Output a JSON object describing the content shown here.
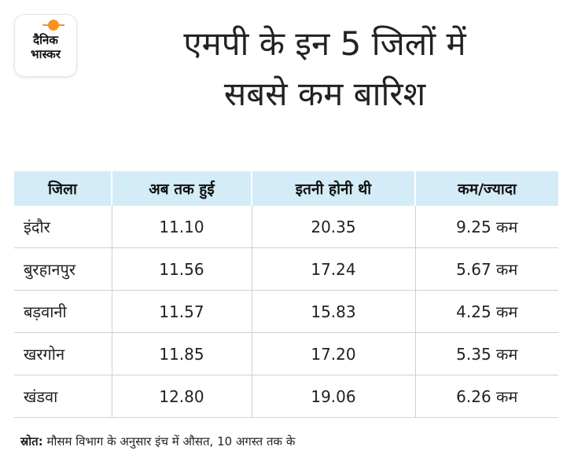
{
  "logo": {
    "line1": "दैनिक",
    "line2": "भास्कर",
    "accent_color": "#f7941d"
  },
  "title": {
    "line1": "एमपी के इन 5 जिलों में",
    "line2": "सबसे कम बारिश"
  },
  "chart_data": {
    "type": "table",
    "header_color": "#d4ecf7",
    "columns": [
      "जिला",
      "अब तक हुई",
      "इतनी होनी थी",
      "कम/ज्यादा"
    ],
    "rows": [
      [
        "इंदौर",
        "11.10",
        "20.35",
        "9.25 कम"
      ],
      [
        "बुरहानपुर",
        "11.56",
        "17.24",
        "5.67 कम"
      ],
      [
        "बड़वानी",
        "11.57",
        "15.83",
        "4.25 कम"
      ],
      [
        "खरगोन",
        "11.85",
        "17.20",
        "5.35 कम"
      ],
      [
        "खंडवा",
        "12.80",
        "19.06",
        "6.26 कम"
      ]
    ]
  },
  "source": {
    "label": "स्रोत:",
    "text": "मौसम विभाग के अनुसार इंच में औसत, 10 अगस्त तक के"
  }
}
